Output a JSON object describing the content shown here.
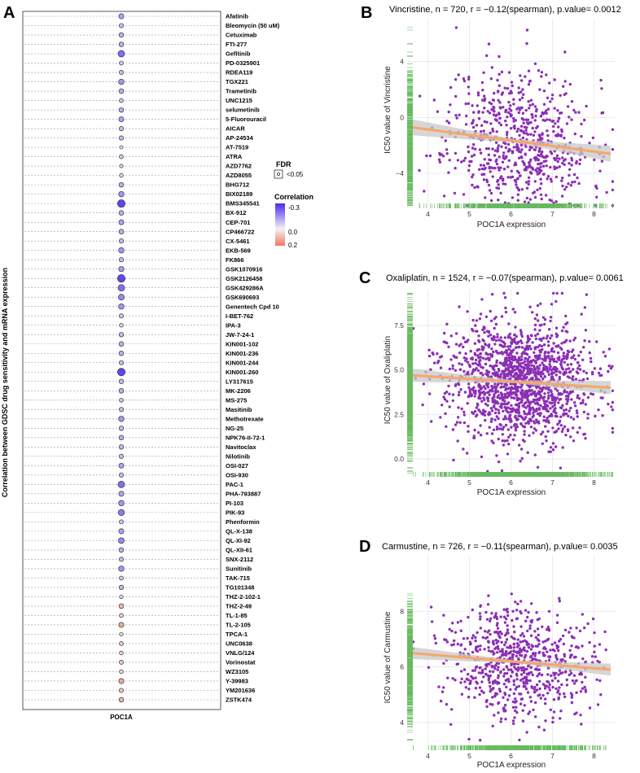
{
  "panel_letters": {
    "a": "A",
    "b": "B",
    "c": "C",
    "d": "D"
  },
  "colors": {
    "positive": "#4a2bf2",
    "negative": "#f07a5a",
    "point": "#8b2fb5",
    "fit": "#f5a76a",
    "band": "#c8c8c8",
    "rug": "#66bb5e",
    "grid": "#e6e6e6"
  },
  "chart_data": [
    {
      "type": "scatter",
      "subtype": "dotplot",
      "title": "",
      "ylabel": "Correlation between GDSC drug sensitivity and mRNA expression",
      "xlabel": "POC1A",
      "legend": {
        "fdr_title": "FDR",
        "fdr_entry": "<0.05",
        "corr_title": "Correlation",
        "corr_ticks": [
          "-0.3",
          "0.0",
          "0.2"
        ],
        "position": "right"
      },
      "drugs": [
        "Afatinib",
        "Bleomycin (50 uM)",
        "Cetuximab",
        "FTI-277",
        "Gefitinib",
        "PD-0325901",
        "RDEA119",
        "TGX221",
        "Trametinib",
        "UNC1215",
        "selumetinib",
        "5-Fluorouracil",
        "AICAR",
        "AP-24534",
        "AT-7519",
        "ATRA",
        "AZD7762",
        "AZD8055",
        "BHG712",
        "BIX02189",
        "BMS345541",
        "BX-912",
        "CEP-701",
        "CP466722",
        "CX-5461",
        "EKB-569",
        "FK866",
        "GSK1070916",
        "GSK2126458",
        "GSK429286A",
        "GSK690693",
        "Genentech Cpd 10",
        "I-BET-762",
        "IPA-3",
        "JW-7-24-1",
        "KIN001-102",
        "KIN001-236",
        "KIN001-244",
        "KIN001-260",
        "LY317615",
        "MK-2206",
        "MS-275",
        "Masitinib",
        "Methotrexate",
        "NG-25",
        "NPK76-II-72-1",
        "Navitoclax",
        "Nilotinib",
        "OSI-027",
        "OSI-930",
        "PAC-1",
        "PHA-793887",
        "PI-103",
        "PIK-93",
        "Phenformin",
        "QL-X-138",
        "QL-XI-92",
        "QL-XII-61",
        "SNX-2112",
        "Sunitinib",
        "TAK-715",
        "TG101348",
        "THZ-2-102-1",
        "THZ-2-49",
        "TL-1-85",
        "TL-2-105",
        "TPCA-1",
        "UNC0638",
        "VNLG/124",
        "Vorinostat",
        "WZ3105",
        "Y-39983",
        "YM201636",
        "ZSTK474"
      ],
      "correlations": [
        -0.12,
        -0.08,
        -0.1,
        -0.1,
        -0.2,
        -0.06,
        -0.08,
        -0.14,
        -0.1,
        -0.06,
        -0.1,
        -0.12,
        -0.08,
        -0.08,
        -0.02,
        -0.06,
        -0.03,
        -0.05,
        -0.1,
        -0.14,
        -0.26,
        -0.1,
        -0.12,
        -0.1,
        -0.08,
        -0.14,
        -0.08,
        -0.13,
        -0.26,
        -0.2,
        -0.16,
        -0.14,
        -0.07,
        -0.05,
        -0.09,
        -0.1,
        -0.1,
        -0.08,
        -0.26,
        -0.09,
        -0.1,
        -0.06,
        -0.08,
        -0.14,
        -0.09,
        -0.1,
        -0.09,
        -0.08,
        -0.12,
        -0.08,
        -0.2,
        -0.12,
        -0.14,
        -0.18,
        -0.07,
        -0.12,
        -0.16,
        -0.1,
        -0.08,
        -0.14,
        -0.06,
        -0.09,
        -0.04,
        0.1,
        0.06,
        0.12,
        0.04,
        0.06,
        0.05,
        0.07,
        0.05,
        0.12,
        0.08,
        0.1
      ]
    },
    {
      "type": "scatter",
      "title": "Vincristine, n = 720, r = −0.12(spearman), p.value= 0.0012",
      "xlabel": "POC1A expression",
      "ylabel": "IC50 value of Vincristine",
      "xlim": [
        3.5,
        8.5
      ],
      "ylim": [
        -6.5,
        7
      ],
      "xticks": [
        4,
        5,
        6,
        7,
        8
      ],
      "yticks": [
        -4,
        0,
        4
      ],
      "yticklabels": [
        "−4",
        "0",
        "4"
      ],
      "n": 720,
      "fit": {
        "x": [
          3.6,
          8.4
        ],
        "y": [
          -0.7,
          -2.6
        ]
      },
      "y_mean": -1.8,
      "y_sd": 2.6,
      "seed": 11
    },
    {
      "type": "scatter",
      "title": "Oxaliplatin, n = 1524, r = −0.07(spearman), p.value= 0.0061",
      "xlabel": "POC1A expression",
      "ylabel": "IC50 value of Oxaliplatin",
      "xlim": [
        3.5,
        8.5
      ],
      "ylim": [
        -1,
        9.5
      ],
      "xticks": [
        4,
        5,
        6,
        7,
        8
      ],
      "yticks": [
        0.0,
        2.5,
        5.0,
        7.5
      ],
      "yticklabels": [
        "0.0",
        "2.5",
        "5.0",
        "7.5"
      ],
      "n": 1524,
      "fit": {
        "x": [
          3.6,
          8.4
        ],
        "y": [
          4.7,
          4.0
        ]
      },
      "y_mean": 4.3,
      "y_sd": 1.7,
      "seed": 23
    },
    {
      "type": "scatter",
      "title": "Carmustine, n = 726, r = −0.11(spearman), p.value= 0.0035",
      "xlabel": "POC1A expression",
      "ylabel": "IC50 value of Carmustine",
      "xlim": [
        3.5,
        8.5
      ],
      "ylim": [
        3,
        10
      ],
      "xticks": [
        4,
        5,
        6,
        7,
        8
      ],
      "yticks": [
        4,
        6,
        8
      ],
      "yticklabels": [
        "4",
        "6",
        "8"
      ],
      "n": 726,
      "fit": {
        "x": [
          3.6,
          8.4
        ],
        "y": [
          6.5,
          5.9
        ]
      },
      "y_mean": 6.1,
      "y_sd": 1.0,
      "seed": 37
    }
  ]
}
